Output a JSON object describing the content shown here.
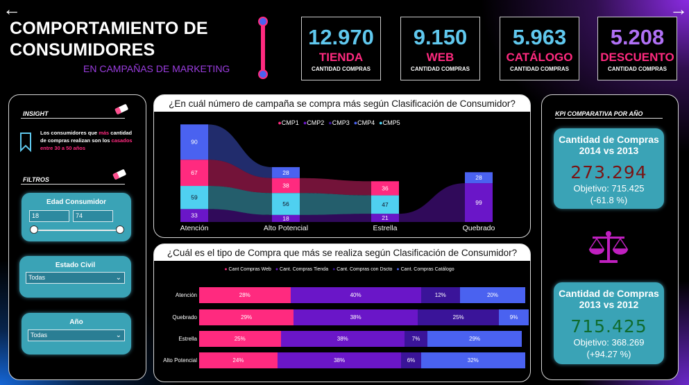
{
  "nav": {
    "back_icon": "arrow-left-icon",
    "forward_icon": "arrow-right-icon"
  },
  "header": {
    "title_line1": "COMPORTAMIENTO DE",
    "title_line2": "CONSUMIDORES",
    "subtitle": "EN CAMPAÑAS DE MARKETING"
  },
  "kpis": [
    {
      "value": "12.970",
      "label": "TIENDA",
      "sub": "CANTIDAD COMPRAS"
    },
    {
      "value": "9.150",
      "label": "WEB",
      "sub": "CANTIDAD COMPRAS"
    },
    {
      "value": "5.963",
      "label": "CATÁLOGO",
      "sub": "CANTIDAD COMPRAS"
    },
    {
      "value": "5.208",
      "label": "DESCUENTO",
      "sub": "CANTIDAD COMPRAS"
    }
  ],
  "left": {
    "insight_heading": "INSIGHT",
    "insight_text_1": "Los consumidores que ",
    "insight_text_2": "más",
    "insight_text_3": " cantidad de compras realizan son los ",
    "insight_text_4": "casados entre 30 a 50 años",
    "filters_heading": "FILTROS",
    "age_title": "Edad Consumidor",
    "age_min": "18",
    "age_max": "74",
    "civil_title": "Estado Civil",
    "civil_value": "Todas",
    "year_title": "Año",
    "year_value": "Todas"
  },
  "colors": {
    "pink": "#ff2a7f",
    "purple": "#6a16c8",
    "dark_purple": "#3a1499",
    "blue": "#4a62f0",
    "cyan": "#4fd0f0",
    "teal": "#3aa3b6"
  },
  "chart_data": [
    {
      "type": "bar",
      "title": "¿En cuál número de campaña se compra más según Clasificación de Consumidor?",
      "stacked": true,
      "categories": [
        "Atención",
        "Alto Potencial",
        "Estrella",
        "Quebrado"
      ],
      "series": [
        {
          "name": "CMP1",
          "values": [
            67,
            38,
            36,
            null
          ]
        },
        {
          "name": "CMP2",
          "values": [
            33,
            18,
            21,
            99
          ]
        },
        {
          "name": "CMP3",
          "values": [
            null,
            null,
            null,
            null
          ]
        },
        {
          "name": "CMP4",
          "values": [
            90,
            28,
            null,
            28
          ]
        },
        {
          "name": "CMP5",
          "values": [
            59,
            56,
            47,
            null
          ]
        }
      ],
      "legend": "top-center"
    },
    {
      "type": "bar",
      "orientation": "horizontal",
      "stacked_percent": true,
      "title": "¿Cuál es el tipo de Compra que más se realiza según Clasificación de Consumidor?",
      "categories": [
        "Atención",
        "Quebrado",
        "Estrella",
        "Alto Potencial"
      ],
      "series": [
        {
          "name": "Cant Compras Web",
          "values": [
            28,
            29,
            25,
            24
          ]
        },
        {
          "name": "Cant. Compras Tienda",
          "values": [
            40,
            38,
            38,
            38
          ]
        },
        {
          "name": "Cant. Compras con Dscto",
          "values": [
            12,
            25,
            7,
            6
          ]
        },
        {
          "name": "Cant. Compras Catálogo",
          "values": [
            20,
            9,
            29,
            32
          ]
        }
      ],
      "legend": "top-center"
    }
  ],
  "right": {
    "heading": "KPI COMPARATIVA POR AÑO",
    "card1": {
      "title_1": "Cantidad de Compras",
      "title_2": "2014 vs 2013",
      "value": "273.294",
      "objective": "Objetivo: 715.425",
      "delta": "(-61.8 %)"
    },
    "card2": {
      "title_1": "Cantidad de Compras",
      "title_2": "2013 vs 2012",
      "value": "715.425",
      "objective": "Objetivo: 368.269",
      "delta": "(+94.27 %)"
    },
    "balance_icon": "scale-icon"
  }
}
